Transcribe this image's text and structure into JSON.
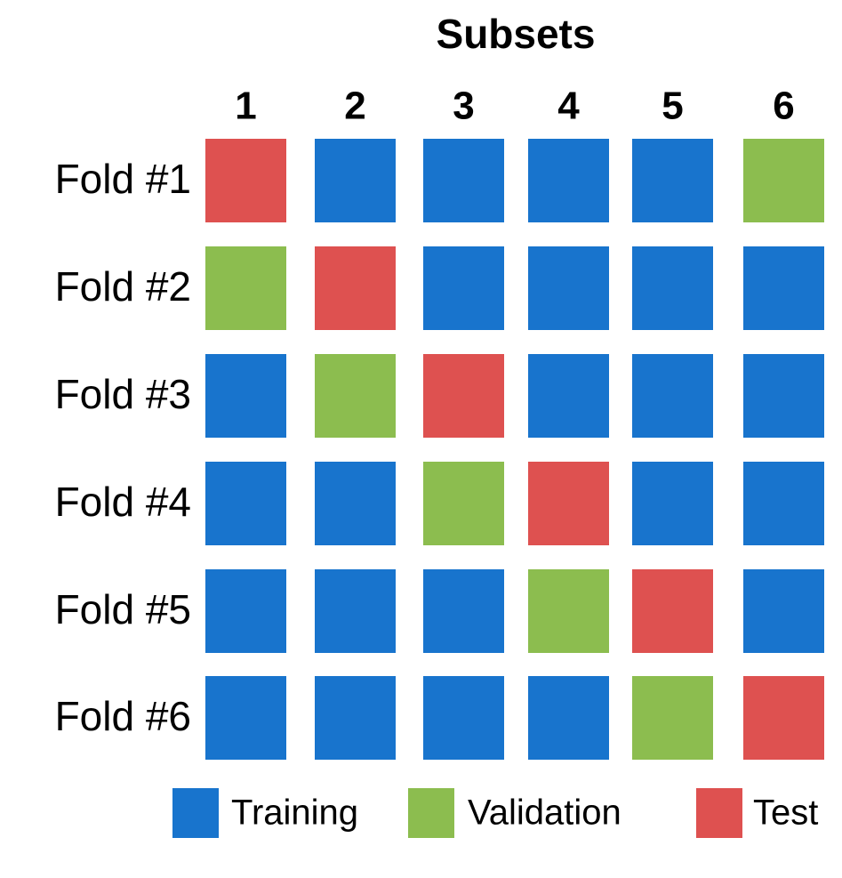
{
  "title": "Subsets",
  "columns": [
    "1",
    "2",
    "3",
    "4",
    "5",
    "6"
  ],
  "rows": [
    {
      "label": "Fold #1",
      "cells": [
        "Test",
        "Training",
        "Training",
        "Training",
        "Training",
        "Validation"
      ]
    },
    {
      "label": "Fold #2",
      "cells": [
        "Validation",
        "Test",
        "Training",
        "Training",
        "Training",
        "Training"
      ]
    },
    {
      "label": "Fold #3",
      "cells": [
        "Training",
        "Validation",
        "Test",
        "Training",
        "Training",
        "Training"
      ]
    },
    {
      "label": "Fold #4",
      "cells": [
        "Training",
        "Training",
        "Validation",
        "Test",
        "Training",
        "Training"
      ]
    },
    {
      "label": "Fold #5",
      "cells": [
        "Training",
        "Training",
        "Training",
        "Validation",
        "Test",
        "Training"
      ]
    },
    {
      "label": "Fold #6",
      "cells": [
        "Training",
        "Training",
        "Training",
        "Training",
        "Validation",
        "Test"
      ]
    }
  ],
  "legend": [
    {
      "label": "Training",
      "color": "#1874cd"
    },
    {
      "label": "Validation",
      "color": "#8cbd4f"
    },
    {
      "label": "Test",
      "color": "#de5150"
    }
  ]
}
